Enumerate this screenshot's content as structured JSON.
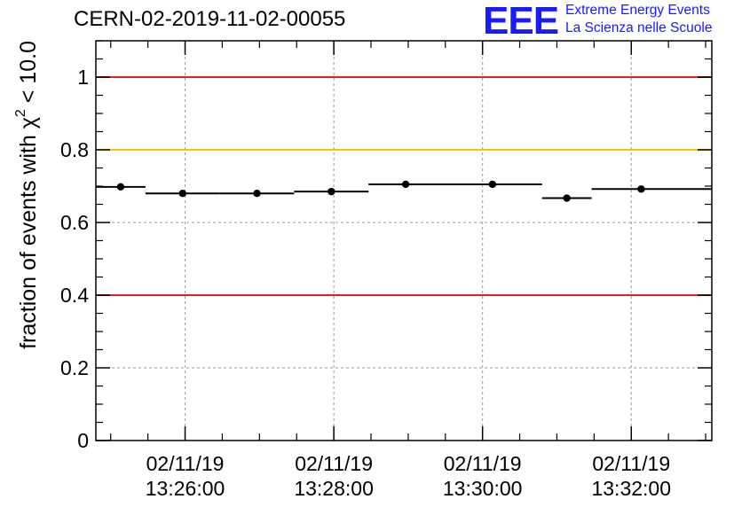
{
  "header": {
    "run_title": "CERN-02-2019-11-02-00055"
  },
  "logo": {
    "mark": "EEE",
    "line1": "Extreme Energy Events",
    "line2": "La Scienza nelle Scuole",
    "color": "#1a1aff"
  },
  "chart_data": {
    "type": "scatter",
    "title": "CERN-02-2019-11-02-00055",
    "ylabel_prefix": "fraction of events with ",
    "ylabel_symbol": "χ",
    "ylabel_exponent": "2",
    "ylabel_suffix": " < 10.0",
    "ylim": [
      0,
      1.1
    ],
    "yticks": [
      {
        "value": 0,
        "label": "0"
      },
      {
        "value": 0.2,
        "label": "0.2"
      },
      {
        "value": 0.4,
        "label": "0.4"
      },
      {
        "value": 0.6,
        "label": "0.6"
      },
      {
        "value": 0.8,
        "label": "0.8"
      },
      {
        "value": 1.0,
        "label": "1"
      }
    ],
    "xlim": [
      "13:24:48",
      "13:33:05"
    ],
    "xticks": [
      {
        "value": "13:26:00",
        "date": "02/11/19",
        "time": "13:26:00"
      },
      {
        "value": "13:28:00",
        "date": "02/11/19",
        "time": "13:28:00"
      },
      {
        "value": "13:30:00",
        "date": "02/11/19",
        "time": "13:30:00"
      },
      {
        "value": "13:32:00",
        "date": "02/11/19",
        "time": "13:32:00"
      }
    ],
    "grid": true,
    "reference_lines": [
      {
        "y": 1.0,
        "color": "#e8201c"
      },
      {
        "y": 0.8,
        "color": "#f5c400"
      },
      {
        "y": 0.4,
        "color": "#e8201c"
      }
    ],
    "points": [
      {
        "x": "13:25:08",
        "x_start": "13:24:48",
        "x_end": "13:25:28",
        "y": 0.698
      },
      {
        "x": "13:25:58",
        "x_start": "13:25:28",
        "x_end": "13:26:28",
        "y": 0.68
      },
      {
        "x": "13:26:58",
        "x_start": "13:26:28",
        "x_end": "13:27:28",
        "y": 0.68
      },
      {
        "x": "13:27:58",
        "x_start": "13:27:28",
        "x_end": "13:28:28",
        "y": 0.685
      },
      {
        "x": "13:28:58",
        "x_start": "13:28:28",
        "x_end": "13:29:28",
        "y": 0.705
      },
      {
        "x": "13:30:08",
        "x_start": "13:29:28",
        "x_end": "13:30:48",
        "y": 0.705
      },
      {
        "x": "13:31:08",
        "x_start": "13:30:48",
        "x_end": "13:31:28",
        "y": 0.667
      },
      {
        "x": "13:32:08",
        "x_start": "13:31:28",
        "x_end": "13:33:05",
        "y": 0.692
      }
    ]
  }
}
